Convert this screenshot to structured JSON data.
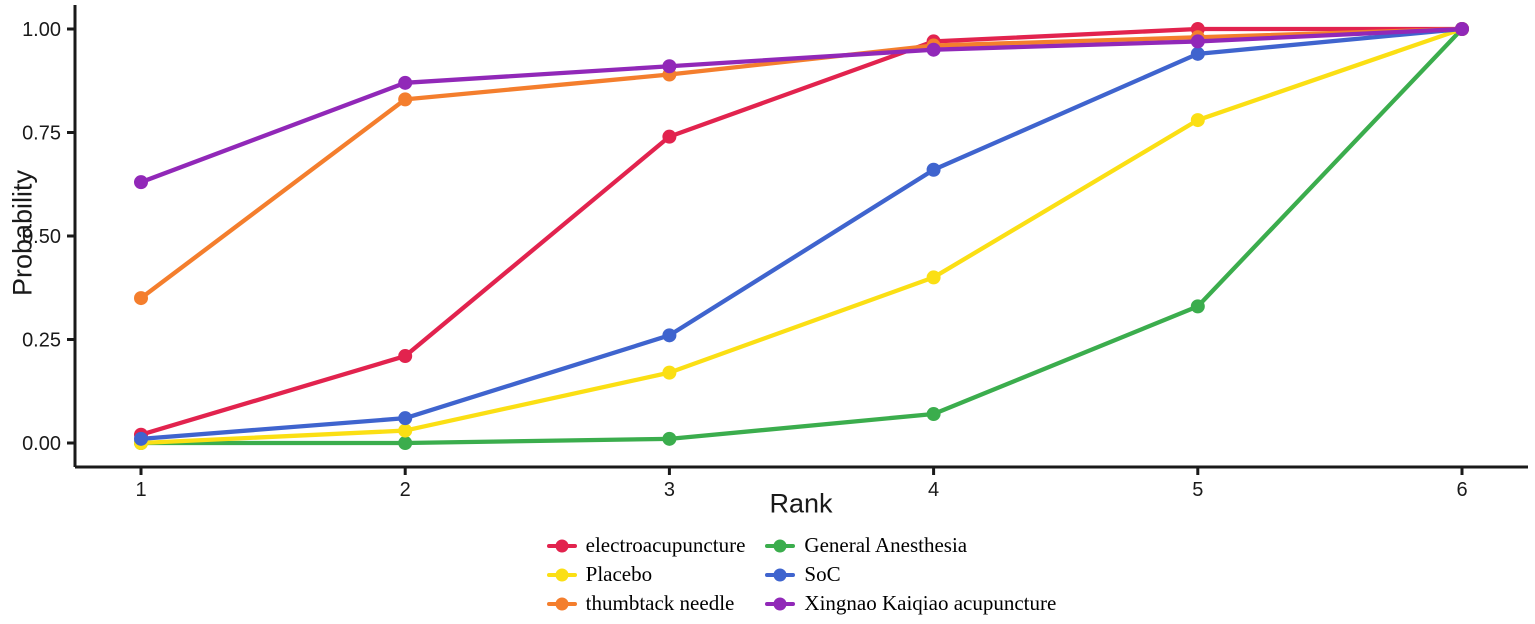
{
  "chart_data": {
    "type": "line",
    "title": "",
    "xlabel": "Rank",
    "ylabel": "Probability",
    "x": [
      1,
      2,
      3,
      4,
      5,
      6
    ],
    "xtick_labels": [
      "1",
      "2",
      "3",
      "4",
      "5",
      "6"
    ],
    "ytick_labels": [
      "0.00",
      "0.25",
      "0.50",
      "0.75",
      "1.00"
    ],
    "ytick_values": [
      0.0,
      0.25,
      0.5,
      0.75,
      1.0
    ],
    "xlim": [
      1,
      6
    ],
    "ylim": [
      0.0,
      1.0
    ],
    "grid": false,
    "legend_position": "bottom-center",
    "axis_color": "#1a1a1a",
    "series": [
      {
        "name": "electroacupuncture",
        "color": "#E2234E",
        "values": [
          0.02,
          0.21,
          0.74,
          0.97,
          1.0,
          1.0
        ]
      },
      {
        "name": "General Anesthesia",
        "color": "#3BAD4D",
        "values": [
          0.0,
          0.0,
          0.01,
          0.07,
          0.33,
          1.0
        ]
      },
      {
        "name": "Placebo",
        "color": "#FBDF14",
        "values": [
          0.0,
          0.03,
          0.17,
          0.4,
          0.78,
          1.0
        ]
      },
      {
        "name": "SoC",
        "color": "#3F64CE",
        "values": [
          0.01,
          0.06,
          0.26,
          0.66,
          0.94,
          1.0
        ]
      },
      {
        "name": "thumbtack needle",
        "color": "#F47E2D",
        "values": [
          0.35,
          0.83,
          0.89,
          0.96,
          0.98,
          1.0
        ]
      },
      {
        "name": "Xingnao Kaiqiao acupuncture",
        "color": "#9128B8",
        "values": [
          0.63,
          0.87,
          0.91,
          0.95,
          0.97,
          1.0
        ]
      }
    ],
    "legend_row_major": [
      "electroacupuncture",
      "General Anesthesia",
      "Placebo",
      "SoC",
      "thumbtack needle",
      "Xingnao Kaiqiao acupuncture"
    ]
  }
}
